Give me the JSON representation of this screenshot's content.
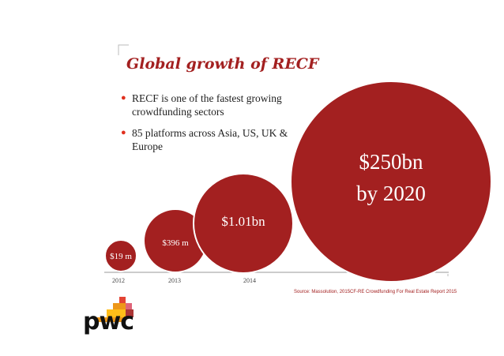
{
  "title": "Global growth of RECF",
  "bullets": [
    "RECF is one of  the fastest growing crowdfunding sectors",
    "85 platforms across Asia, US, UK & Europe"
  ],
  "source": "Source: Massolution, 2015CF-RE Crowdfunding For Real Estate Report 2015",
  "brand": "pwc",
  "colors": {
    "bubble": "#a32020",
    "bubble_dark": "#8b1b1b",
    "accent": "#e0301e",
    "logo_blocks": [
      "#e0301e",
      "#eb8c00",
      "#db536a",
      "#ffb600",
      "#a32020"
    ]
  },
  "chart_data": {
    "type": "bubble",
    "title": "Global growth of RECF",
    "categories": [
      "2012",
      "2013",
      "2014",
      "2020"
    ],
    "values_usd_m": [
      19,
      396,
      1010,
      250000
    ],
    "labels": [
      "$19 m",
      "$396 m",
      "$1.01bn",
      "$250bn by 2020"
    ],
    "label_lines": [
      [
        "$19 m"
      ],
      [
        "$396 m"
      ],
      [
        "$1.01bn"
      ],
      [
        "$250bn",
        "by 2020"
      ]
    ],
    "xlabel": "",
    "ylabel": ""
  }
}
